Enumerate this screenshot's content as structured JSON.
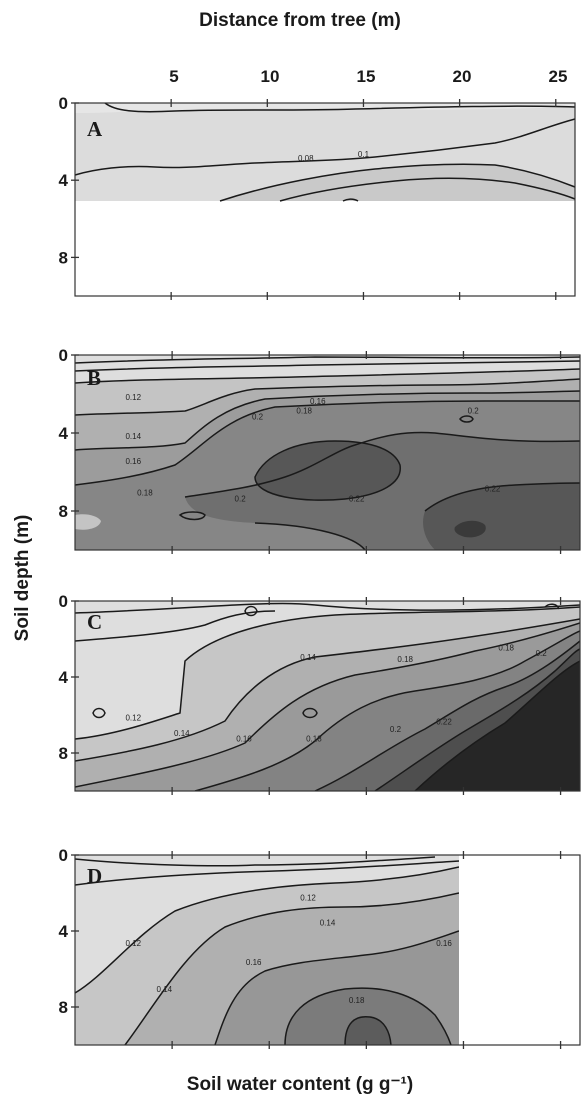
{
  "chart_data": {
    "type": "contour",
    "x_axis": {
      "label": "Distance from tree (m)",
      "position": "top",
      "ticks": [
        5,
        10,
        15,
        20,
        25
      ],
      "range": [
        0,
        26
      ]
    },
    "y_axis": {
      "label": "Soil depth (m)",
      "ticks": [
        0,
        4,
        8
      ],
      "range": [
        0,
        10
      ]
    },
    "colorbar_label": "Soil water content (g g⁻¹)",
    "panels": [
      {
        "id": "A",
        "depth_range": [
          0,
          10
        ],
        "data_max_depth": 5,
        "data_max_distance": 26,
        "contour_labels": [
          {
            "text": "0.08",
            "x": 12,
            "y": 3.0
          },
          {
            "text": "0.1",
            "x": 15,
            "y": 2.8
          }
        ]
      },
      {
        "id": "B",
        "depth_range": [
          0,
          10
        ],
        "data_max_depth": 10,
        "data_max_distance": 26,
        "contour_labels": [
          {
            "text": "0.12",
            "x": 3,
            "y": 2.3
          },
          {
            "text": "0.14",
            "x": 3,
            "y": 4.3
          },
          {
            "text": "0.16",
            "x": 3,
            "y": 5.6
          },
          {
            "text": "0.18",
            "x": 3.6,
            "y": 7.2
          },
          {
            "text": "0.16",
            "x": 12.5,
            "y": 2.5
          },
          {
            "text": "0.18",
            "x": 11.8,
            "y": 3.0
          },
          {
            "text": "0.2",
            "x": 9.4,
            "y": 3.3
          },
          {
            "text": "0.2",
            "x": 20.5,
            "y": 3.0
          },
          {
            "text": "0.2",
            "x": 8.5,
            "y": 7.5
          },
          {
            "text": "0.22",
            "x": 14.5,
            "y": 7.5
          },
          {
            "text": "0.22",
            "x": 21.5,
            "y": 7.0
          }
        ]
      },
      {
        "id": "C",
        "depth_range": [
          0,
          10
        ],
        "data_max_depth": 10,
        "data_max_distance": 26,
        "contour_labels": [
          {
            "text": "0.12",
            "x": 3.0,
            "y": 6.3
          },
          {
            "text": "0.14",
            "x": 5.5,
            "y": 7.1
          },
          {
            "text": "0.14",
            "x": 12.0,
            "y": 3.1
          },
          {
            "text": "0.16",
            "x": 8.7,
            "y": 7.4
          },
          {
            "text": "0.18",
            "x": 12.3,
            "y": 7.4
          },
          {
            "text": "0.18",
            "x": 17.0,
            "y": 3.2
          },
          {
            "text": "0.18",
            "x": 22.2,
            "y": 2.6
          },
          {
            "text": "0.2",
            "x": 16.5,
            "y": 6.9
          },
          {
            "text": "0.2",
            "x": 24.0,
            "y": 2.9
          },
          {
            "text": "0.22",
            "x": 19.0,
            "y": 6.5
          }
        ]
      },
      {
        "id": "D",
        "depth_range": [
          0,
          10
        ],
        "data_max_depth": 10,
        "data_max_distance": 20,
        "contour_labels": [
          {
            "text": "0.12",
            "x": 12.0,
            "y": 2.4
          },
          {
            "text": "0.14",
            "x": 13.0,
            "y": 3.7
          },
          {
            "text": "0.12",
            "x": 3.0,
            "y": 4.8
          },
          {
            "text": "0.14",
            "x": 4.6,
            "y": 7.2
          },
          {
            "text": "0.16",
            "x": 9.2,
            "y": 5.8
          },
          {
            "text": "0.16",
            "x": 19.0,
            "y": 4.8
          },
          {
            "text": "0.18",
            "x": 14.5,
            "y": 7.8
          }
        ]
      }
    ]
  }
}
